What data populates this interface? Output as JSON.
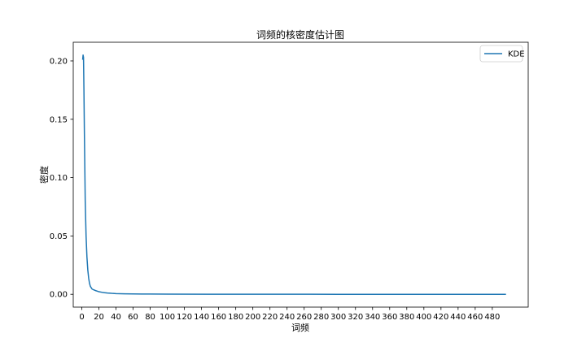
{
  "chart_data": {
    "type": "line",
    "title": "词频的核密度估计图",
    "xlabel": "词频",
    "ylabel": "密度",
    "xlim": [
      -10,
      522
    ],
    "ylim": [
      -0.011,
      0.216
    ],
    "xticks": [
      0,
      20,
      40,
      60,
      80,
      100,
      120,
      140,
      160,
      180,
      200,
      220,
      240,
      260,
      280,
      300,
      320,
      340,
      360,
      380,
      400,
      420,
      440,
      460,
      480
    ],
    "yticks": [
      0.0,
      0.05,
      0.1,
      0.15,
      0.2
    ],
    "ytick_labels": [
      "0.00",
      "0.05",
      "0.10",
      "0.15",
      "0.20"
    ],
    "grid": false,
    "legend": {
      "placement": "top-right",
      "entries": [
        "KDE"
      ]
    },
    "series": [
      {
        "name": "KDE",
        "color": "#1f77b4",
        "x": [
          1,
          1.5,
          2,
          2.5,
          3,
          3.5,
          4,
          5,
          6,
          7,
          8,
          9,
          10,
          12,
          14,
          16,
          18,
          20,
          25,
          30,
          35,
          40,
          50,
          60,
          70,
          80,
          100,
          150,
          200,
          300,
          400,
          496
        ],
        "y": [
          0.201,
          0.205,
          0.203,
          0.175,
          0.14,
          0.11,
          0.08,
          0.05,
          0.032,
          0.021,
          0.014,
          0.0095,
          0.0068,
          0.0045,
          0.0038,
          0.0032,
          0.0027,
          0.0022,
          0.0015,
          0.0011,
          0.0008,
          0.0006,
          0.0004,
          0.0003,
          0.00025,
          0.0002,
          0.00012,
          6e-05,
          3e-05,
          1e-05,
          5e-06,
          2e-06
        ]
      }
    ]
  }
}
